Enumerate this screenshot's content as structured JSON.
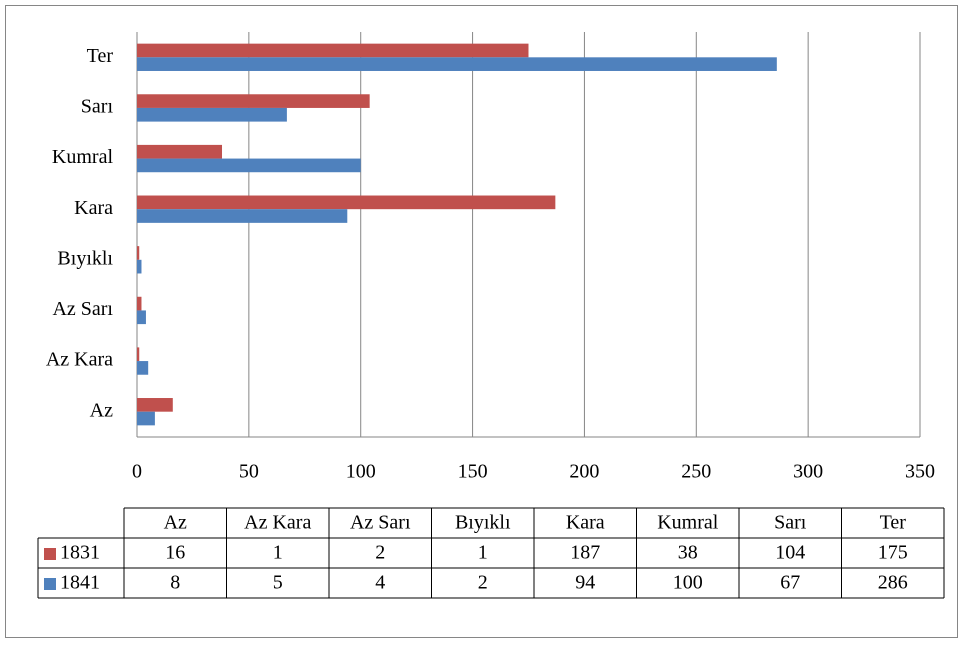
{
  "chart_data": {
    "type": "bar",
    "orientation": "horizontal",
    "categories": [
      "Az",
      "Az Kara",
      "Az Sarı",
      "Bıyıklı",
      "Kara",
      "Kumral",
      "Sarı",
      "Ter"
    ],
    "series": [
      {
        "name": "1831",
        "color": "#c0504d",
        "values": [
          16,
          1,
          2,
          1,
          187,
          38,
          104,
          175
        ]
      },
      {
        "name": "1841",
        "color": "#4f81bd",
        "values": [
          8,
          5,
          4,
          2,
          94,
          100,
          67,
          286
        ]
      }
    ],
    "xlim": [
      0,
      350
    ],
    "xticks": [
      0,
      50,
      100,
      150,
      200,
      250,
      300,
      350
    ],
    "grid": true,
    "data_table": true
  }
}
